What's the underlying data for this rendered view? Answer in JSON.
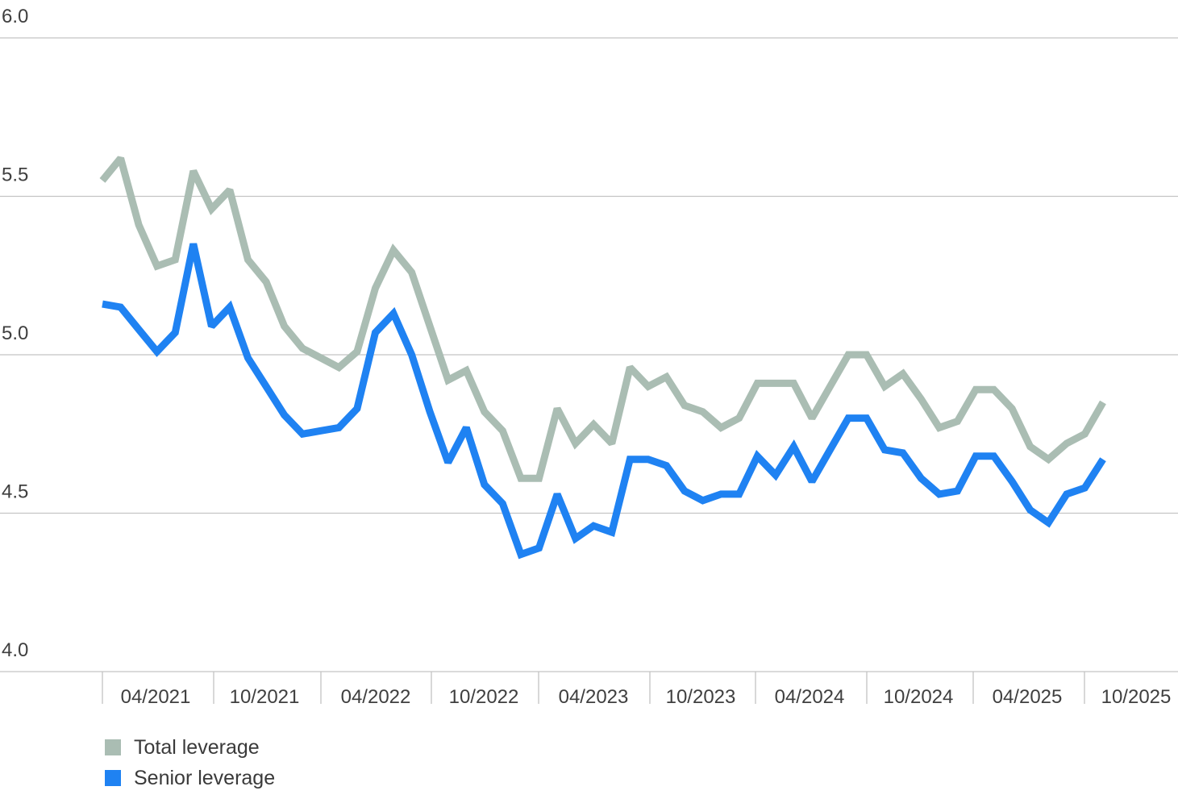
{
  "chart_data": {
    "type": "line",
    "y_ticks": [
      "6.0",
      "5.5",
      "5.0",
      "4.5",
      "4.0"
    ],
    "ylim": [
      4.0,
      6.0
    ],
    "x_ticks": [
      "04/2021",
      "10/2021",
      "04/2022",
      "10/2022",
      "04/2023",
      "10/2023",
      "04/2024",
      "10/2024",
      "04/2025",
      "10/2025"
    ],
    "grid": "horizontal",
    "legend_position": "bottom-left",
    "series": [
      {
        "name": "Total leverage",
        "color": "#aabdb3",
        "values": [
          5.55,
          5.62,
          5.41,
          5.28,
          5.3,
          5.58,
          5.46,
          5.52,
          5.3,
          5.23,
          5.09,
          5.02,
          4.99,
          4.96,
          5.01,
          5.21,
          5.33,
          5.26,
          5.09,
          4.92,
          4.95,
          4.82,
          4.76,
          4.61,
          4.61,
          4.83,
          4.72,
          4.78,
          4.72,
          4.96,
          4.9,
          4.93,
          4.84,
          4.82,
          4.77,
          4.8,
          4.91,
          4.91,
          4.91,
          4.8,
          4.9,
          5.0,
          5.0,
          4.9,
          4.94,
          4.86,
          4.77,
          4.79,
          4.89,
          4.89,
          4.83,
          4.71,
          4.67,
          4.72,
          4.75,
          4.85
        ]
      },
      {
        "name": "Senior leverage",
        "color": "#1f82f2",
        "values": [
          5.16,
          5.15,
          5.08,
          5.01,
          5.07,
          5.35,
          5.09,
          5.15,
          4.99,
          4.9,
          4.81,
          4.75,
          4.76,
          4.77,
          4.83,
          5.07,
          5.13,
          5.0,
          4.82,
          4.66,
          4.77,
          4.59,
          4.53,
          4.37,
          4.39,
          4.56,
          4.42,
          4.46,
          4.44,
          4.67,
          4.67,
          4.65,
          4.57,
          4.54,
          4.56,
          4.56,
          4.68,
          4.62,
          4.71,
          4.6,
          4.7,
          4.8,
          4.8,
          4.7,
          4.69,
          4.61,
          4.56,
          4.57,
          4.68,
          4.68,
          4.6,
          4.51,
          4.47,
          4.56,
          4.58,
          4.67
        ]
      }
    ]
  },
  "legend": {
    "items": [
      {
        "label": "Total leverage",
        "color": "#aabdb3"
      },
      {
        "label": "Senior leverage",
        "color": "#1f82f2"
      }
    ]
  }
}
